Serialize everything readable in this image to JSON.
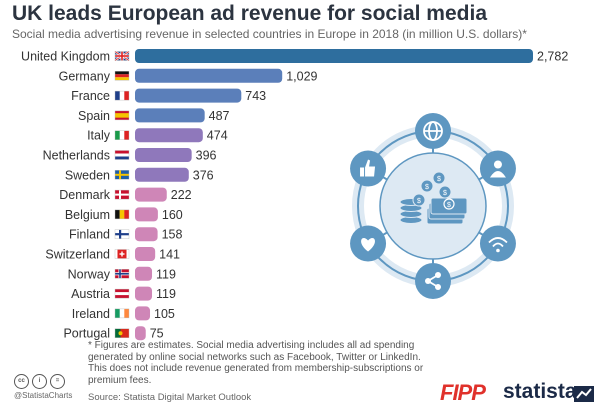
{
  "title": "UK leads European ad revenue for social media",
  "subtitle": "Social media advertising revenue in selected countries in Europe in 2018 (in million U.S. dollars)*",
  "footnote": "* Figures are estimates. Social media advertising includes all ad spending generated by online social networks such as Facebook, Twitter or LinkedIn. This does not include revenue generated from membership-subscriptions or premium fees.",
  "source": "Source: Statista Digital Market Outlook",
  "handle": "@StatistaCharts",
  "logos": {
    "left": "FIPP",
    "right": "statista"
  },
  "colors": {
    "bar_top": "#2e6e9e",
    "bar_mid": "#8f78bb",
    "bar_low": "#cf86b7",
    "illustration": "#5e97c1",
    "illustration_light": "#dde9f3"
  },
  "flags": {
    "United Kingdom": "uk",
    "Germany": "de",
    "France": "fr",
    "Spain": "es",
    "Italy": "it",
    "Netherlands": "nl",
    "Sweden": "se",
    "Denmark": "dk",
    "Belgium": "be",
    "Finland": "fi",
    "Switzerland": "ch",
    "Norway": "no",
    "Austria": "at",
    "Ireland": "ie",
    "Portugal": "pt"
  },
  "chart_data": {
    "type": "bar",
    "orientation": "horizontal",
    "categories": [
      "United Kingdom",
      "Germany",
      "France",
      "Spain",
      "Italy",
      "Netherlands",
      "Sweden",
      "Denmark",
      "Belgium",
      "Finland",
      "Switzerland",
      "Norway",
      "Austria",
      "Ireland",
      "Portugal"
    ],
    "values": [
      2782,
      1029,
      743,
      487,
      474,
      396,
      376,
      222,
      160,
      158,
      141,
      119,
      119,
      105,
      75
    ],
    "value_labels": [
      "2,782",
      "1,029",
      "743",
      "487",
      "474",
      "396",
      "376",
      "222",
      "160",
      "158",
      "141",
      "119",
      "119",
      "105",
      "75"
    ],
    "xlim": [
      0,
      2782
    ],
    "grid": false,
    "legend": "none"
  }
}
